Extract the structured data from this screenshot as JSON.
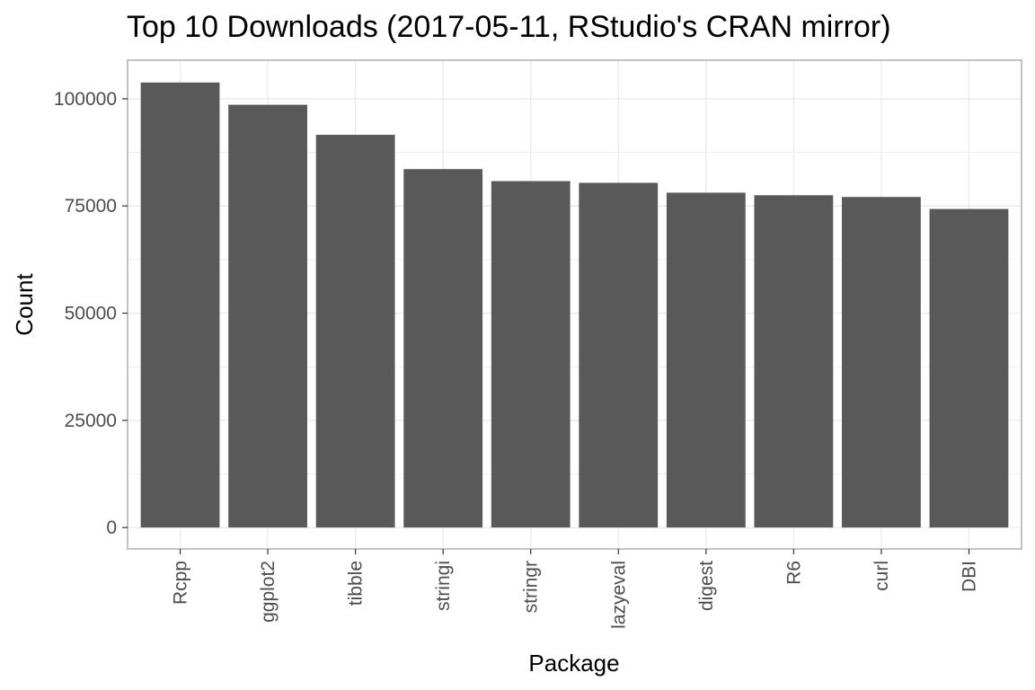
{
  "chart_data": {
    "type": "bar",
    "title": "Top 10 Downloads (2017-05-11, RStudio's CRAN mirror)",
    "xlabel": "Package",
    "ylabel": "Count",
    "categories": [
      "Rcpp",
      "ggplot2",
      "tibble",
      "stringi",
      "stringr",
      "lazyeval",
      "digest",
      "R6",
      "curl",
      "DBI"
    ],
    "values": [
      103800,
      98600,
      91600,
      83600,
      80800,
      80400,
      78100,
      77500,
      77100,
      74300
    ],
    "ylim": [
      -5000,
      109000
    ],
    "yticks": [
      0,
      25000,
      50000,
      75000,
      100000
    ],
    "ytick_labels": [
      "0",
      "25000",
      "50000",
      "75000",
      "100000"
    ],
    "grid": true,
    "bar_color": "#595959",
    "grid_color": "#ebebeb",
    "panel_border_color": "#b3b3b3"
  }
}
